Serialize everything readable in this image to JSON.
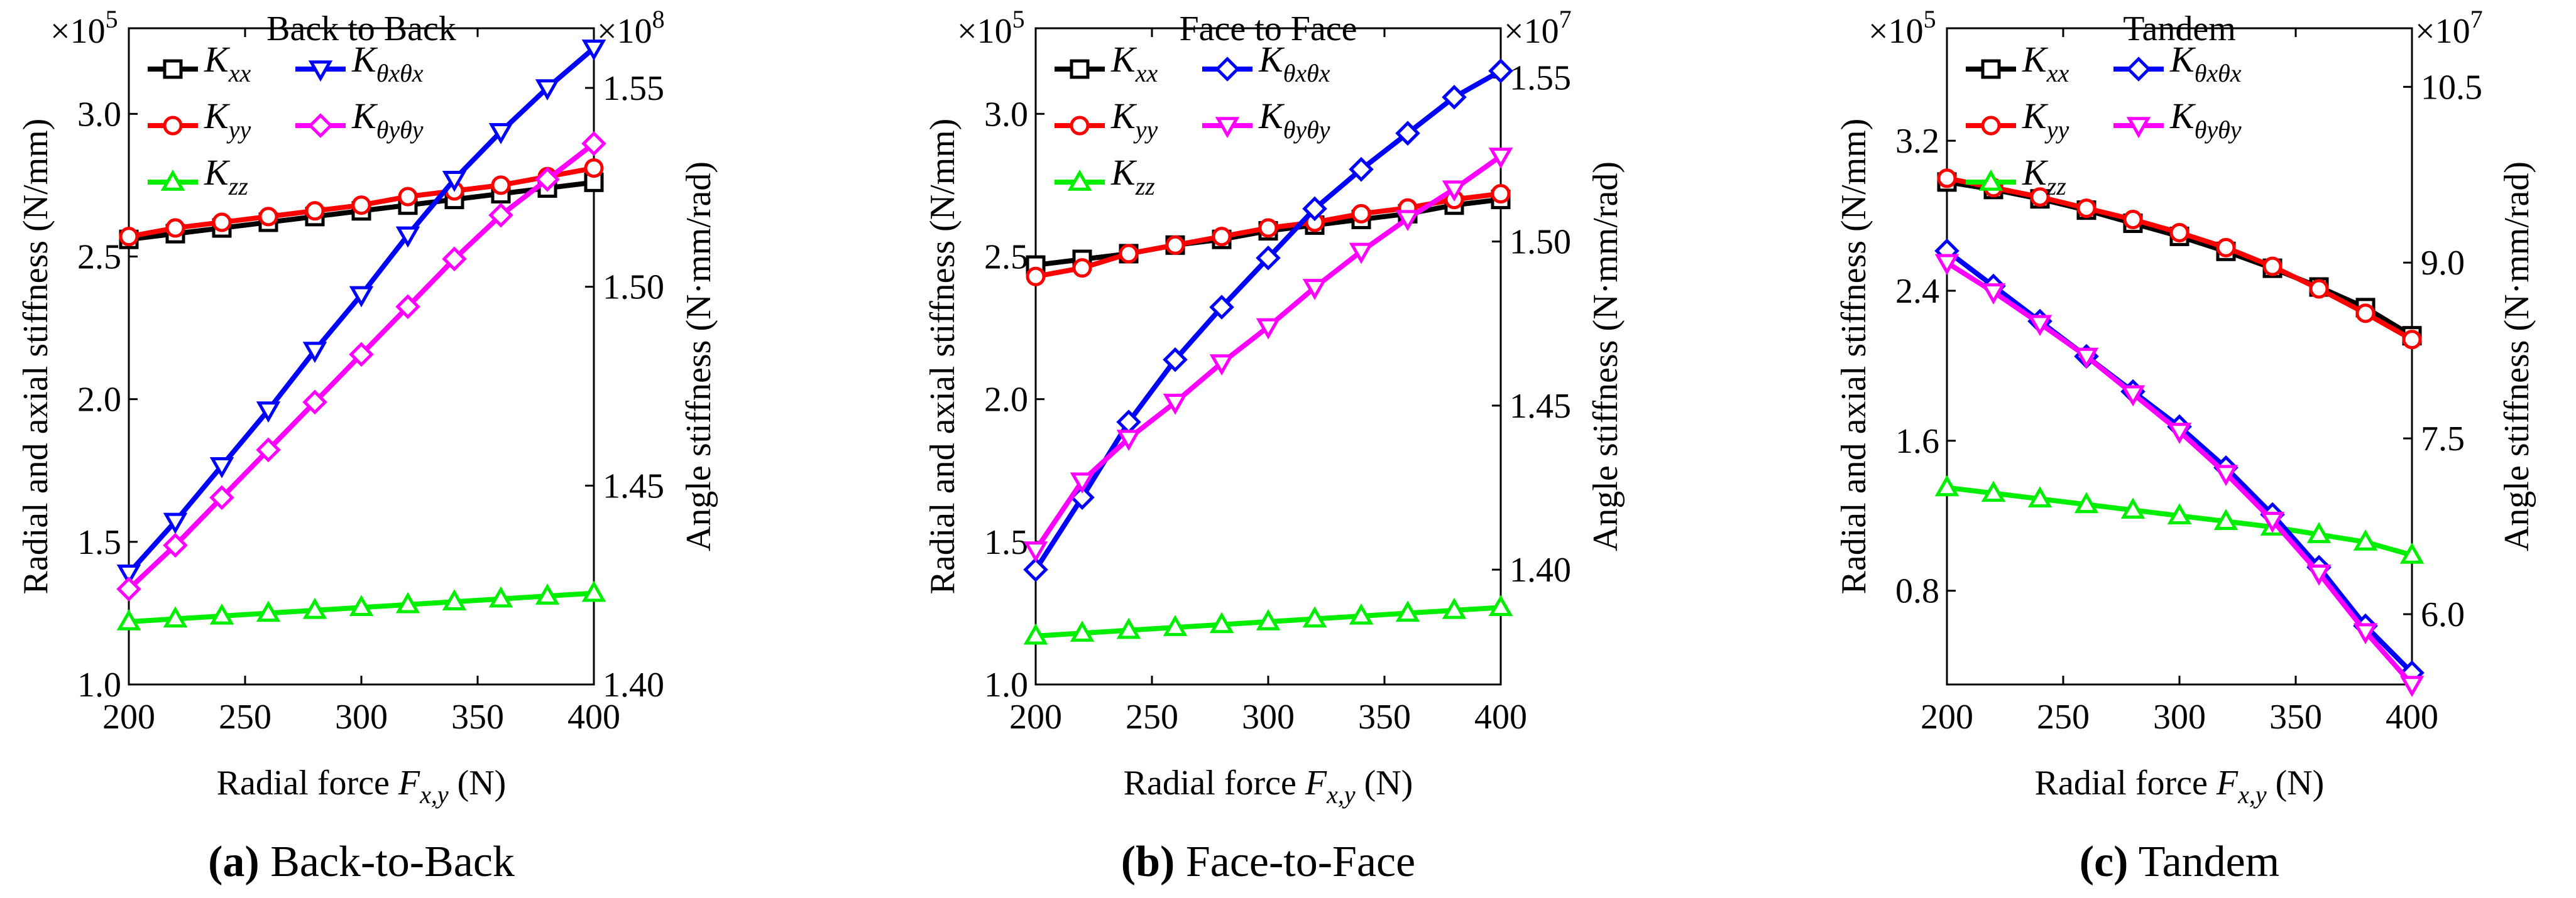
{
  "figure": {
    "x_label_prefix": "Radial force ",
    "x_label_var": "F",
    "x_label_sub": "x,y",
    "x_label_suffix": " (N)",
    "left_ylabel": "Radial and axial stiffness (N/mm)",
    "right_ylabel": "Angle stiffness (N·mm/rad)",
    "multiplier_base": "×10"
  },
  "chart_data": [
    {
      "type": "line",
      "title": "Back to Back",
      "caption_letter": "(a)",
      "caption_text": " Back-to-Back",
      "x": [
        200,
        220,
        240,
        260,
        280,
        300,
        320,
        340,
        360,
        380,
        400
      ],
      "xticks": [
        200,
        250,
        300,
        350,
        400
      ],
      "xtick_labels": [
        "200",
        "250",
        "300",
        "350",
        "400"
      ],
      "xlim": [
        200,
        400
      ],
      "left_axis": {
        "ylim": [
          1.0,
          3.3
        ],
        "ticks": [
          1.0,
          1.5,
          2.0,
          2.5,
          3.0
        ],
        "tick_labels": [
          "1.0",
          "1.5",
          "2.0",
          "2.5",
          "3.0"
        ],
        "exponent": "5"
      },
      "right_axis": {
        "ylim": [
          1.4,
          1.565
        ],
        "ticks": [
          1.4,
          1.45,
          1.5,
          1.55
        ],
        "tick_labels": [
          "1.40",
          "1.45",
          "1.50",
          "1.55"
        ],
        "exponent": "8"
      },
      "series": [
        {
          "key": "kxx",
          "name_main": "K",
          "name_sub": "xx",
          "axis": "left",
          "color": "#000000",
          "marker": "square",
          "values": [
            2.56,
            2.58,
            2.6,
            2.62,
            2.64,
            2.66,
            2.68,
            2.7,
            2.72,
            2.74,
            2.76
          ]
        },
        {
          "key": "kyy",
          "name_main": "K",
          "name_sub": "yy",
          "axis": "left",
          "color": "#ff0000",
          "marker": "circle",
          "values": [
            2.57,
            2.6,
            2.62,
            2.64,
            2.66,
            2.68,
            2.71,
            2.73,
            2.75,
            2.78,
            2.81
          ]
        },
        {
          "key": "kzz",
          "name_main": "K",
          "name_sub": "zz",
          "axis": "left",
          "color": "#00ee00",
          "marker": "triangle-up",
          "values": [
            1.22,
            1.23,
            1.24,
            1.25,
            1.26,
            1.27,
            1.28,
            1.29,
            1.3,
            1.31,
            1.32
          ]
        },
        {
          "key": "ktx",
          "name_main": "K",
          "name_sub": "θxθx",
          "axis": "right",
          "color": "#0000ff",
          "marker": "triangle-down",
          "values": [
            1.428,
            1.441,
            1.455,
            1.469,
            1.484,
            1.498,
            1.513,
            1.527,
            1.539,
            1.55,
            1.56
          ]
        },
        {
          "key": "kty",
          "name_main": "K",
          "name_sub": "θyθy",
          "axis": "right",
          "color": "#ff00ff",
          "marker": "diamond",
          "values": [
            1.424,
            1.435,
            1.447,
            1.459,
            1.471,
            1.483,
            1.495,
            1.507,
            1.518,
            1.527,
            1.536
          ]
        }
      ],
      "legend": [
        [
          "kxx",
          "ktx"
        ],
        [
          "kyy",
          "kty"
        ],
        [
          "kzz"
        ]
      ]
    },
    {
      "type": "line",
      "title": "Face to Face",
      "caption_letter": "(b)",
      "caption_text": " Face-to-Face",
      "x": [
        200,
        220,
        240,
        260,
        280,
        300,
        320,
        340,
        360,
        380,
        400
      ],
      "xticks": [
        200,
        250,
        300,
        350,
        400
      ],
      "xtick_labels": [
        "200",
        "250",
        "300",
        "350",
        "400"
      ],
      "xlim": [
        200,
        400
      ],
      "left_axis": {
        "ylim": [
          1.0,
          3.3
        ],
        "ticks": [
          1.0,
          1.5,
          2.0,
          2.5,
          3.0
        ],
        "tick_labels": [
          "1.0",
          "1.5",
          "2.0",
          "2.5",
          "3.0"
        ],
        "exponent": "5"
      },
      "right_axis": {
        "ylim": [
          1.365,
          1.565
        ],
        "ticks": [
          1.4,
          1.45,
          1.5,
          1.55
        ],
        "tick_labels": [
          "1.40",
          "1.45",
          "1.50",
          "1.55"
        ],
        "exponent": "7"
      },
      "series": [
        {
          "key": "kxx",
          "name_main": "K",
          "name_sub": "xx",
          "axis": "left",
          "color": "#000000",
          "marker": "square",
          "values": [
            2.47,
            2.49,
            2.51,
            2.54,
            2.56,
            2.59,
            2.61,
            2.63,
            2.65,
            2.68,
            2.7
          ]
        },
        {
          "key": "kyy",
          "name_main": "K",
          "name_sub": "yy",
          "axis": "left",
          "color": "#ff0000",
          "marker": "circle",
          "values": [
            2.43,
            2.46,
            2.51,
            2.54,
            2.57,
            2.6,
            2.62,
            2.65,
            2.67,
            2.7,
            2.72
          ]
        },
        {
          "key": "kzz",
          "name_main": "K",
          "name_sub": "zz",
          "axis": "left",
          "color": "#00ee00",
          "marker": "triangle-up",
          "values": [
            1.17,
            1.18,
            1.19,
            1.2,
            1.21,
            1.22,
            1.23,
            1.24,
            1.25,
            1.26,
            1.27
          ]
        },
        {
          "key": "ktx",
          "name_main": "K",
          "name_sub": "θxθx",
          "axis": "right",
          "color": "#0000ff",
          "marker": "diamond",
          "values": [
            1.4,
            1.422,
            1.445,
            1.464,
            1.48,
            1.495,
            1.51,
            1.522,
            1.533,
            1.544,
            1.552
          ]
        },
        {
          "key": "kty",
          "name_main": "K",
          "name_sub": "θyθy",
          "axis": "right",
          "color": "#ff00ff",
          "marker": "triangle-down",
          "values": [
            1.406,
            1.427,
            1.44,
            1.451,
            1.463,
            1.474,
            1.486,
            1.497,
            1.507,
            1.516,
            1.526
          ]
        }
      ],
      "legend": [
        [
          "kxx",
          "ktx"
        ],
        [
          "kyy",
          "kty"
        ],
        [
          "kzz"
        ]
      ]
    },
    {
      "type": "line",
      "title": "Tandem",
      "caption_letter": "(c)",
      "caption_text": " Tandem",
      "x": [
        200,
        220,
        240,
        260,
        280,
        300,
        320,
        340,
        360,
        380,
        400
      ],
      "xticks": [
        200,
        250,
        300,
        350,
        400
      ],
      "xtick_labels": [
        "200",
        "250",
        "300",
        "350",
        "400"
      ],
      "xlim": [
        200,
        400
      ],
      "left_axis": {
        "ylim": [
          0.3,
          3.8
        ],
        "ticks": [
          0.8,
          1.6,
          2.4,
          3.2
        ],
        "tick_labels": [
          "0.8",
          "1.6",
          "2.4",
          "3.2"
        ],
        "exponent": "5"
      },
      "right_axis": {
        "ylim": [
          5.4,
          11.0
        ],
        "ticks": [
          6.0,
          7.5,
          9.0,
          10.5
        ],
        "tick_labels": [
          "6.0",
          "7.5",
          "9.0",
          "10.5"
        ],
        "exponent": "7"
      },
      "series": [
        {
          "key": "kxx",
          "name_main": "K",
          "name_sub": "xx",
          "axis": "left",
          "color": "#000000",
          "marker": "square",
          "values": [
            2.98,
            2.94,
            2.89,
            2.83,
            2.76,
            2.69,
            2.61,
            2.52,
            2.42,
            2.31,
            2.16
          ]
        },
        {
          "key": "kyy",
          "name_main": "K",
          "name_sub": "yy",
          "axis": "left",
          "color": "#ff0000",
          "marker": "circle",
          "values": [
            3.0,
            2.95,
            2.9,
            2.84,
            2.78,
            2.71,
            2.63,
            2.53,
            2.41,
            2.28,
            2.14
          ]
        },
        {
          "key": "kzz",
          "name_main": "K",
          "name_sub": "zz",
          "axis": "left",
          "color": "#00ee00",
          "marker": "triangle-up",
          "values": [
            1.35,
            1.32,
            1.29,
            1.26,
            1.23,
            1.2,
            1.17,
            1.14,
            1.1,
            1.06,
            0.99
          ]
        },
        {
          "key": "ktx",
          "name_main": "K",
          "name_sub": "θxθx",
          "axis": "right",
          "color": "#0000ff",
          "marker": "diamond",
          "values": [
            9.1,
            8.8,
            8.5,
            8.2,
            7.9,
            7.6,
            7.25,
            6.85,
            6.4,
            5.9,
            5.5
          ]
        },
        {
          "key": "kty",
          "name_main": "K",
          "name_sub": "θyθy",
          "axis": "right",
          "color": "#ff00ff",
          "marker": "triangle-down",
          "values": [
            9.0,
            8.75,
            8.48,
            8.2,
            7.88,
            7.56,
            7.2,
            6.8,
            6.35,
            5.85,
            5.4
          ]
        }
      ],
      "legend": [
        [
          "kxx",
          "ktx"
        ],
        [
          "kyy",
          "kty"
        ],
        [
          "kzz"
        ]
      ]
    }
  ]
}
